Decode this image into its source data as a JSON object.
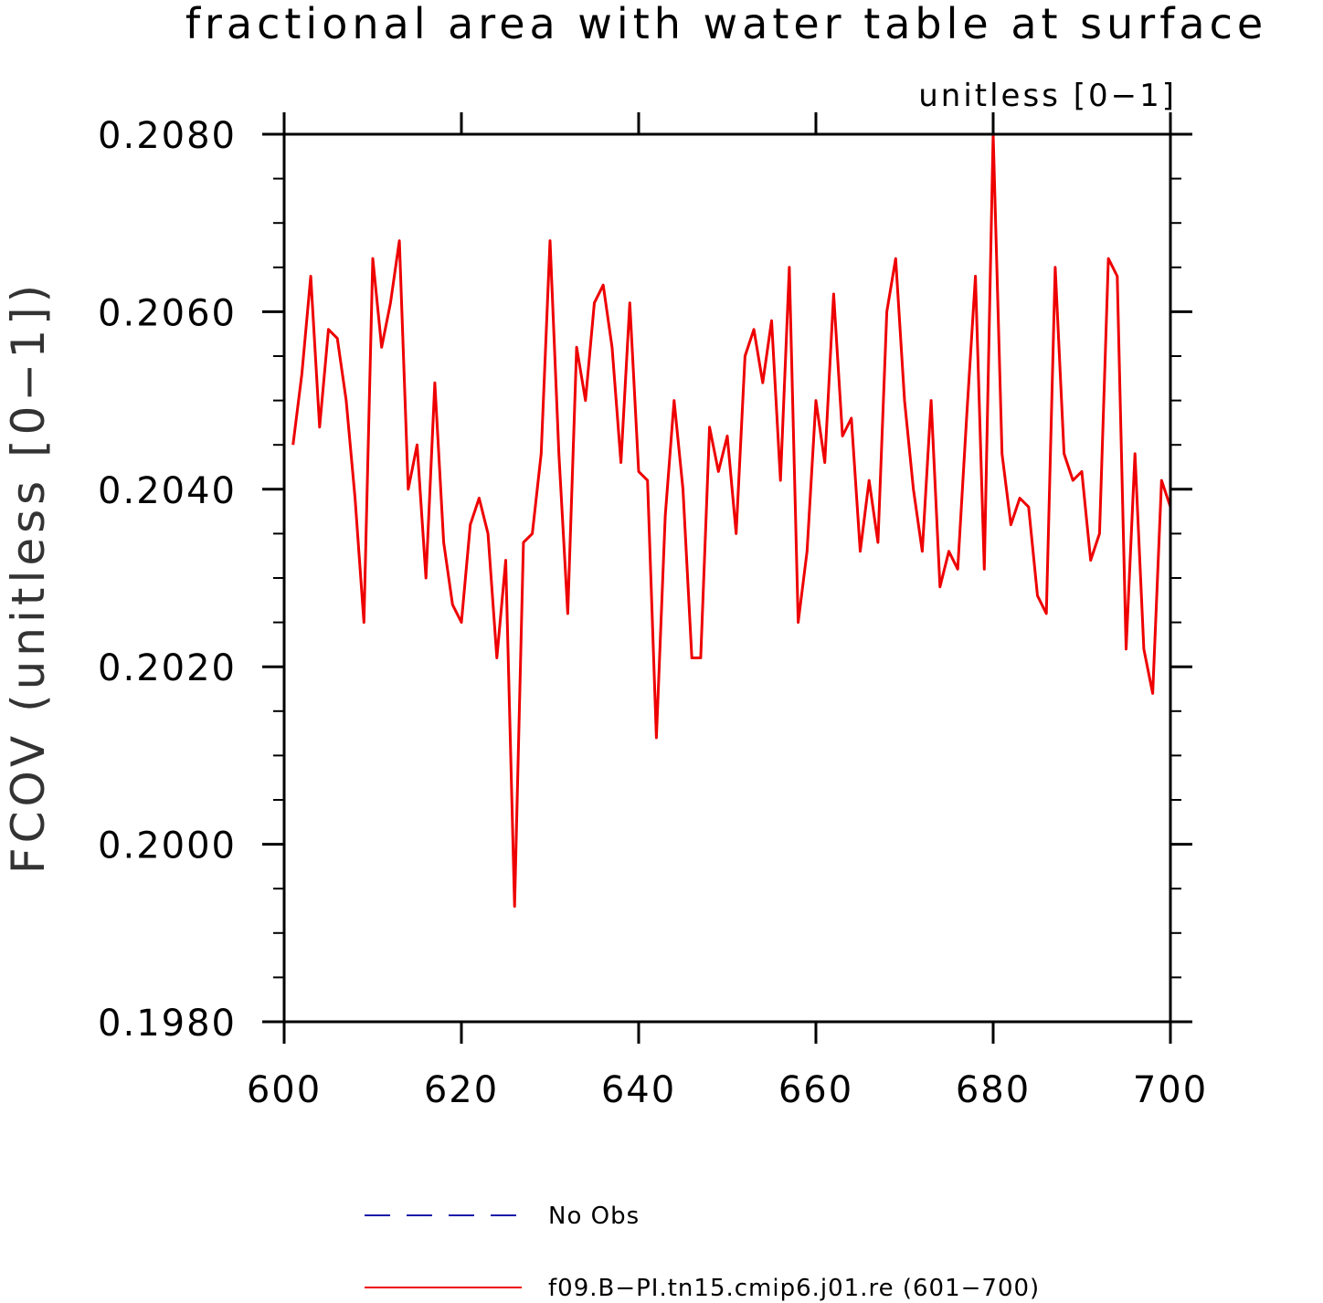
{
  "chart_data": {
    "type": "line",
    "title": "fractional area with water table at surface",
    "units_label": "unitless [0−1]",
    "ylabel": "FCOV   (unitless [0−1])",
    "xlim": [
      600,
      700
    ],
    "ylim": [
      0.198,
      0.208
    ],
    "x_ticks": [
      600,
      620,
      640,
      660,
      680,
      700
    ],
    "x_tick_labels": [
      "600",
      "620",
      "640",
      "660",
      "680",
      "700"
    ],
    "y_ticks": [
      0.198,
      0.2,
      0.202,
      0.204,
      0.206,
      0.208
    ],
    "y_tick_labels": [
      "0.1980",
      "0.2000",
      "0.2020",
      "0.2040",
      "0.2060",
      "0.2080"
    ],
    "series": [
      {
        "name": "f09.B−PI.tn15.cmip6.j01.re (601−700)",
        "color": "#ee0000",
        "dash": "solid",
        "x": [
          601,
          602,
          603,
          604,
          605,
          606,
          607,
          608,
          609,
          610,
          611,
          612,
          613,
          614,
          615,
          616,
          617,
          618,
          619,
          620,
          621,
          622,
          623,
          624,
          625,
          626,
          627,
          628,
          629,
          630,
          631,
          632,
          633,
          634,
          635,
          636,
          637,
          638,
          639,
          640,
          641,
          642,
          643,
          644,
          645,
          646,
          647,
          648,
          649,
          650,
          651,
          652,
          653,
          654,
          655,
          656,
          657,
          658,
          659,
          660,
          661,
          662,
          663,
          664,
          665,
          666,
          667,
          668,
          669,
          670,
          671,
          672,
          673,
          674,
          675,
          676,
          677,
          678,
          679,
          680,
          681,
          682,
          683,
          684,
          685,
          686,
          687,
          688,
          689,
          690,
          691,
          692,
          693,
          694,
          695,
          696,
          697,
          698,
          699,
          700
        ],
        "values": [
          0.2045,
          0.2053,
          0.2064,
          0.2047,
          0.2058,
          0.2057,
          0.205,
          0.2039,
          0.2025,
          0.2066,
          0.2056,
          0.2061,
          0.2068,
          0.204,
          0.2045,
          0.203,
          0.2052,
          0.2034,
          0.2027,
          0.2025,
          0.2036,
          0.2039,
          0.2035,
          0.2021,
          0.2032,
          0.1993,
          0.2034,
          0.2035,
          0.2044,
          0.2068,
          0.2044,
          0.2026,
          0.2056,
          0.205,
          0.2061,
          0.2063,
          0.2056,
          0.2043,
          0.2061,
          0.2042,
          0.2041,
          0.2012,
          0.2037,
          0.205,
          0.204,
          0.2021,
          0.2021,
          0.2047,
          0.2042,
          0.2046,
          0.2035,
          0.2055,
          0.2058,
          0.2052,
          0.2059,
          0.2041,
          0.2065,
          0.2025,
          0.2033,
          0.205,
          0.2043,
          0.2062,
          0.2046,
          0.2048,
          0.2033,
          0.2041,
          0.2034,
          0.206,
          0.2066,
          0.205,
          0.204,
          0.2033,
          0.205,
          0.2029,
          0.2033,
          0.2031,
          0.2048,
          0.2064,
          0.2031,
          0.208,
          0.2044,
          0.2036,
          0.2039,
          0.2038,
          0.2028,
          0.2026,
          0.2065,
          0.2044,
          0.2041,
          0.2042,
          0.2032,
          0.2035,
          0.2066,
          0.2064,
          0.2022,
          0.2044,
          0.2022,
          0.2017,
          0.2041,
          0.2038
        ]
      }
    ],
    "legend": {
      "placement": "bottom-center",
      "entries": [
        {
          "label": "No Obs",
          "color": "#1a1aaa",
          "dash": "dashed"
        },
        {
          "label": "f09.B−PI.tn15.cmip6.j01.re (601−700)",
          "color": "#ee0000",
          "dash": "solid"
        }
      ]
    },
    "grid": false
  }
}
